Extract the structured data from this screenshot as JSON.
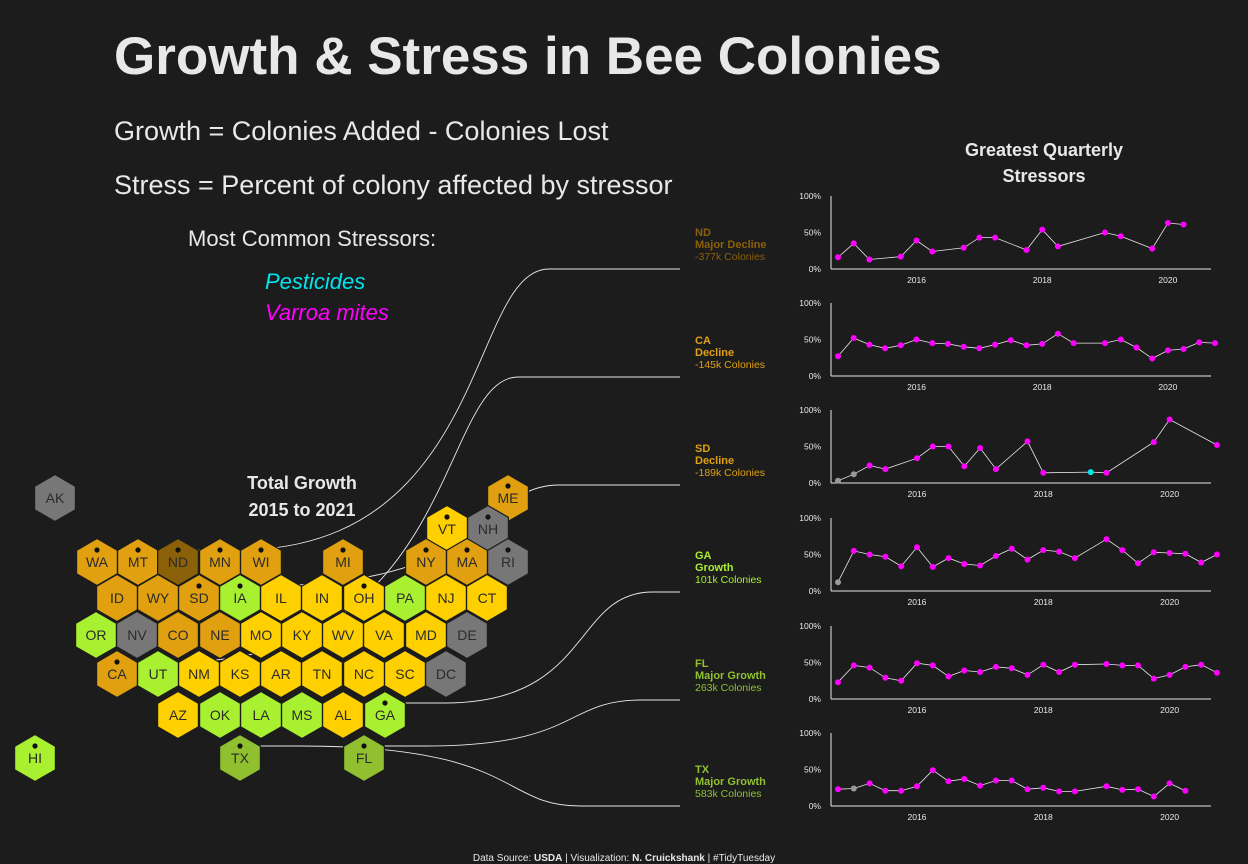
{
  "title": "Growth & Stress in Bee Colonies",
  "definitions": {
    "growth": "Growth = Colonies Added - Colonies Lost",
    "stress": "Stress = Percent of colony affected by stressor"
  },
  "legend": {
    "heading": "Most Common Stressors:",
    "items": [
      {
        "label": "Pesticides",
        "color": "#00e5ee"
      },
      {
        "label": "Varroa mites",
        "color": "#ff00ff"
      }
    ]
  },
  "map_title": {
    "line1": "Total Growth",
    "line2": "2015 to 2021"
  },
  "right_panel_title": {
    "line1": "Greatest Quarterly",
    "line2": "Stressors"
  },
  "footer": {
    "prefix": "Data Source: ",
    "source": "USDA",
    "mid": " | Visualization: ",
    "author": "N. Cruickshank",
    "suffix": " | #TidyTuesday"
  },
  "colors": {
    "background": "#1c1c1c",
    "major_decline": "#8a6008",
    "decline": "#e0a010",
    "growth_small": "#ffd000",
    "growth": "#a8f030",
    "major_growth": "#90c030",
    "na": "#777777",
    "mites": "#ff00ff",
    "pesticides": "#00e5ee",
    "other": "#999999"
  },
  "chart_data": [
    {
      "type": "heatmap",
      "title": "Total Growth 2015 to 2021",
      "hexes": [
        {
          "state": "AK",
          "category": "na"
        },
        {
          "state": "ME",
          "category": "decline"
        },
        {
          "state": "VT",
          "category": "growth_small"
        },
        {
          "state": "NH",
          "category": "na"
        },
        {
          "state": "WA",
          "category": "decline"
        },
        {
          "state": "MT",
          "category": "decline"
        },
        {
          "state": "ND",
          "category": "major_decline"
        },
        {
          "state": "MN",
          "category": "decline"
        },
        {
          "state": "WI",
          "category": "decline"
        },
        {
          "state": "MI",
          "category": "decline"
        },
        {
          "state": "NY",
          "category": "decline"
        },
        {
          "state": "MA",
          "category": "decline"
        },
        {
          "state": "RI",
          "category": "na"
        },
        {
          "state": "ID",
          "category": "decline"
        },
        {
          "state": "WY",
          "category": "decline"
        },
        {
          "state": "SD",
          "category": "decline"
        },
        {
          "state": "IA",
          "category": "growth"
        },
        {
          "state": "IL",
          "category": "growth_small"
        },
        {
          "state": "IN",
          "category": "growth_small"
        },
        {
          "state": "OH",
          "category": "growth_small"
        },
        {
          "state": "PA",
          "category": "growth"
        },
        {
          "state": "NJ",
          "category": "growth_small"
        },
        {
          "state": "CT",
          "category": "growth_small"
        },
        {
          "state": "OR",
          "category": "growth"
        },
        {
          "state": "NV",
          "category": "na"
        },
        {
          "state": "CO",
          "category": "decline"
        },
        {
          "state": "NE",
          "category": "decline"
        },
        {
          "state": "MO",
          "category": "growth_small"
        },
        {
          "state": "KY",
          "category": "growth_small"
        },
        {
          "state": "WV",
          "category": "growth_small"
        },
        {
          "state": "VA",
          "category": "growth_small"
        },
        {
          "state": "MD",
          "category": "growth_small"
        },
        {
          "state": "DE",
          "category": "na"
        },
        {
          "state": "CA",
          "category": "decline"
        },
        {
          "state": "UT",
          "category": "growth"
        },
        {
          "state": "NM",
          "category": "growth_small"
        },
        {
          "state": "KS",
          "category": "growth_small"
        },
        {
          "state": "AR",
          "category": "growth_small"
        },
        {
          "state": "TN",
          "category": "growth_small"
        },
        {
          "state": "NC",
          "category": "growth_small"
        },
        {
          "state": "SC",
          "category": "growth_small"
        },
        {
          "state": "DC",
          "category": "na"
        },
        {
          "state": "AZ",
          "category": "growth_small"
        },
        {
          "state": "OK",
          "category": "growth"
        },
        {
          "state": "LA",
          "category": "growth"
        },
        {
          "state": "MS",
          "category": "growth"
        },
        {
          "state": "AL",
          "category": "growth_small"
        },
        {
          "state": "GA",
          "category": "growth"
        },
        {
          "state": "HI",
          "category": "growth"
        },
        {
          "state": "TX",
          "category": "major_growth"
        },
        {
          "state": "FL",
          "category": "major_growth"
        }
      ]
    },
    {
      "type": "line",
      "title": "Greatest Quarterly Stressors",
      "x_ticks": [
        "2016",
        "2018",
        "2020"
      ],
      "y_ticks": [
        "0%",
        "50%",
        "100%"
      ],
      "ylim": [
        0,
        100
      ],
      "panels": [
        {
          "state": "ND",
          "category": "major_decline",
          "label": "Major Decline",
          "total": "-377k Colonies",
          "x": [
            2015.0,
            2015.25,
            2015.5,
            2016.0,
            2016.25,
            2016.5,
            2017.0,
            2017.25,
            2017.5,
            2018.0,
            2018.25,
            2018.5,
            2019.25,
            2019.5,
            2020.0,
            2020.25,
            2020.5
          ],
          "values": [
            16,
            35,
            13,
            17,
            39,
            24,
            29,
            43,
            43,
            26,
            54,
            31,
            50,
            45,
            28,
            63,
            61
          ],
          "stressor": [
            "m",
            "m",
            "m",
            "m",
            "m",
            "m",
            "m",
            "m",
            "m",
            "m",
            "m",
            "m",
            "m",
            "m",
            "m",
            "m",
            "m"
          ]
        },
        {
          "state": "CA",
          "category": "decline",
          "label": "Decline",
          "total": "-145k Colonies",
          "x": [
            2015.0,
            2015.25,
            2015.5,
            2015.75,
            2016.0,
            2016.25,
            2016.5,
            2016.75,
            2017.0,
            2017.25,
            2017.5,
            2017.75,
            2018.0,
            2018.25,
            2018.5,
            2018.75,
            2019.25,
            2019.5,
            2019.75,
            2020.0,
            2020.25,
            2020.5,
            2020.75,
            2021.0
          ],
          "values": [
            27,
            52,
            43,
            38,
            42,
            50,
            45,
            44,
            40,
            38,
            43,
            49,
            42,
            44,
            58,
            45,
            45,
            50,
            39,
            24,
            35,
            37,
            46,
            45
          ],
          "stressor": [
            "m",
            "m",
            "m",
            "m",
            "m",
            "m",
            "m",
            "m",
            "m",
            "m",
            "m",
            "m",
            "m",
            "m",
            "m",
            "m",
            "m",
            "m",
            "m",
            "m",
            "m",
            "m",
            "m",
            "m"
          ]
        },
        {
          "state": "SD",
          "category": "decline",
          "label": "Decline",
          "total": "-189k Colonies",
          "x": [
            2015.0,
            2015.25,
            2015.5,
            2015.75,
            2016.25,
            2016.5,
            2016.75,
            2017.0,
            2017.25,
            2017.5,
            2018.0,
            2018.25,
            2019.0,
            2019.25,
            2020.0,
            2020.25,
            2021.0
          ],
          "values": [
            3,
            12,
            24,
            19,
            34,
            50,
            50,
            23,
            48,
            19,
            57,
            14,
            15,
            14,
            56,
            87,
            52
          ],
          "stressor": [
            "o",
            "o",
            "m",
            "m",
            "m",
            "m",
            "m",
            "m",
            "m",
            "m",
            "m",
            "m",
            "p",
            "m",
            "m",
            "m",
            "m"
          ]
        },
        {
          "state": "GA",
          "category": "growth",
          "label": "Growth",
          "total": "101k Colonies",
          "x": [
            2015.0,
            2015.25,
            2015.5,
            2015.75,
            2016.0,
            2016.25,
            2016.5,
            2016.75,
            2017.0,
            2017.25,
            2017.5,
            2017.75,
            2018.0,
            2018.25,
            2018.5,
            2018.75,
            2019.25,
            2019.5,
            2019.75,
            2020.0,
            2020.25,
            2020.5,
            2020.75,
            2021.0
          ],
          "values": [
            12,
            55,
            50,
            47,
            34,
            60,
            33,
            45,
            37,
            35,
            48,
            58,
            43,
            56,
            54,
            45,
            71,
            56,
            38,
            53,
            52,
            51,
            39,
            50
          ],
          "stressor": [
            "o",
            "m",
            "m",
            "m",
            "m",
            "m",
            "m",
            "m",
            "m",
            "m",
            "m",
            "m",
            "m",
            "m",
            "m",
            "m",
            "m",
            "m",
            "m",
            "m",
            "m",
            "m",
            "m",
            "m"
          ]
        },
        {
          "state": "FL",
          "category": "major_growth",
          "label": "Major Growth",
          "total": "263k Colonies",
          "x": [
            2015.0,
            2015.25,
            2015.5,
            2015.75,
            2016.0,
            2016.25,
            2016.5,
            2016.75,
            2017.0,
            2017.25,
            2017.5,
            2017.75,
            2018.0,
            2018.25,
            2018.5,
            2018.75,
            2019.25,
            2019.5,
            2019.75,
            2020.0,
            2020.25,
            2020.5,
            2020.75,
            2021.0
          ],
          "values": [
            23,
            46,
            43,
            29,
            25,
            49,
            46,
            31,
            39,
            37,
            44,
            42,
            33,
            47,
            37,
            47,
            48,
            46,
            46,
            28,
            33,
            44,
            47,
            36
          ],
          "stressor": [
            "m",
            "m",
            "m",
            "m",
            "m",
            "m",
            "m",
            "m",
            "m",
            "m",
            "m",
            "m",
            "m",
            "m",
            "m",
            "m",
            "m",
            "m",
            "m",
            "m",
            "m",
            "m",
            "m",
            "m"
          ]
        },
        {
          "state": "TX",
          "category": "major_growth",
          "label": "Major Growth",
          "total": "583k Colonies",
          "x": [
            2015.0,
            2015.25,
            2015.5,
            2015.75,
            2016.0,
            2016.25,
            2016.5,
            2016.75,
            2017.0,
            2017.25,
            2017.5,
            2017.75,
            2018.0,
            2018.25,
            2018.5,
            2018.75,
            2019.25,
            2019.5,
            2019.75,
            2020.0,
            2020.25,
            2020.5
          ],
          "values": [
            23,
            24,
            31,
            21,
            21,
            27,
            49,
            34,
            37,
            28,
            35,
            35,
            23,
            25,
            20,
            20,
            27,
            22,
            23,
            13,
            31,
            21
          ],
          "stressor": [
            "m",
            "o",
            "m",
            "m",
            "m",
            "m",
            "m",
            "m",
            "m",
            "m",
            "m",
            "m",
            "m",
            "m",
            "m",
            "m",
            "m",
            "m",
            "m",
            "m",
            "m",
            "m"
          ]
        }
      ]
    }
  ]
}
